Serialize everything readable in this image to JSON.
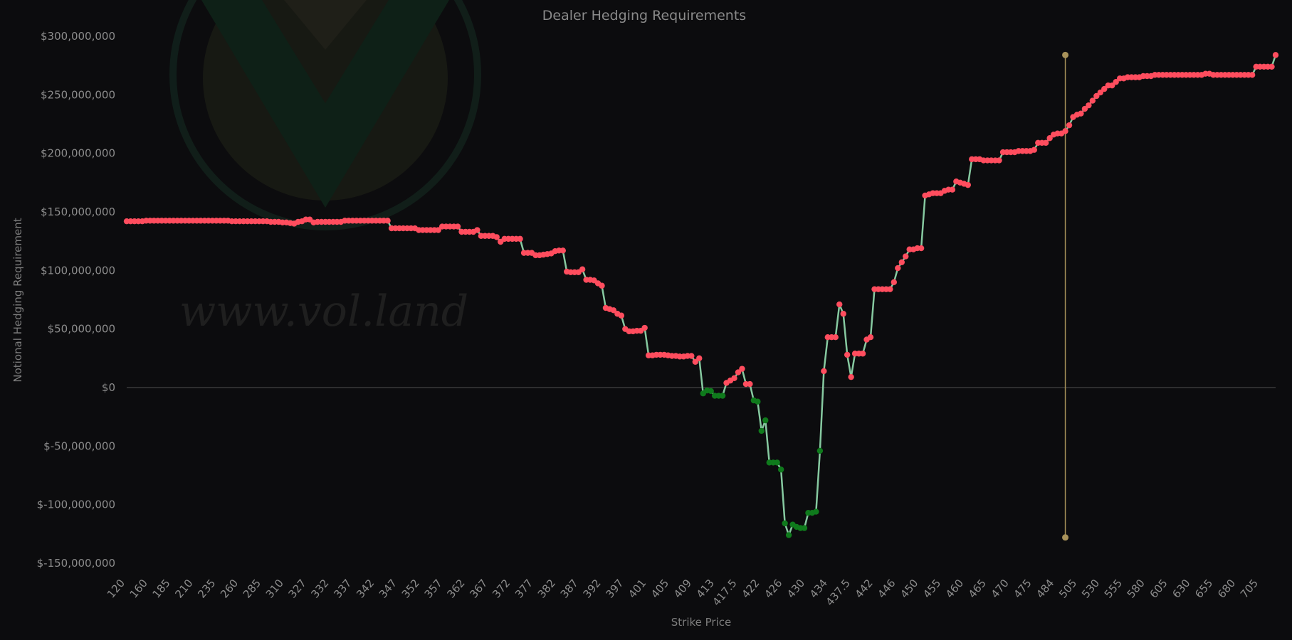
{
  "chart_data": {
    "type": "line",
    "title": "Dealer Hedging Requirements",
    "xlabel": "Strike Price",
    "ylabel": "Notional Hedging Requirement",
    "watermark": "www.vol.land",
    "ylim": [
      -150000000,
      300000000
    ],
    "y_ticks": [
      {
        "value": 300000000,
        "label": "$300,000,000"
      },
      {
        "value": 250000000,
        "label": "$250,000,000"
      },
      {
        "value": 200000000,
        "label": "$200,000,000"
      },
      {
        "value": 150000000,
        "label": "$150,000,000"
      },
      {
        "value": 100000000,
        "label": "$100,000,000"
      },
      {
        "value": 50000000,
        "label": "$50,000,000"
      },
      {
        "value": 0,
        "label": "$0"
      },
      {
        "value": -50000000,
        "label": "$-50,000,000"
      },
      {
        "value": -100000000,
        "label": "$-100,000,000"
      },
      {
        "value": -150000000,
        "label": "$-150,000,000"
      }
    ],
    "x_tick_labels": [
      "120",
      "160",
      "185",
      "210",
      "235",
      "260",
      "285",
      "310",
      "327",
      "332",
      "337",
      "342",
      "347",
      "352",
      "357",
      "362",
      "367",
      "372",
      "377",
      "382",
      "387",
      "392",
      "397",
      "401",
      "405",
      "409",
      "413",
      "417.5",
      "422",
      "426",
      "430",
      "434",
      "437.5",
      "442",
      "446",
      "450",
      "455",
      "460",
      "465",
      "470",
      "475",
      "484",
      "505",
      "530",
      "555",
      "580",
      "605",
      "630",
      "655",
      "680",
      "705"
    ],
    "spot_marker": {
      "x_index": 241,
      "top_value": 284000000,
      "bottom_value": -128000000
    },
    "colors": {
      "background": "#0c0c0e",
      "line": "#86c9a0",
      "positive_point": "#ff4d5e",
      "negative_point": "#0f7a1c",
      "spot_line": "#a8925a",
      "zero_line": "#3a3a3a"
    },
    "series": [
      {
        "values": [
          142,
          142,
          142,
          142,
          142,
          142.5,
          142.5,
          142.5,
          142.5,
          142.5,
          142.5,
          142.5,
          142.5,
          142.5,
          142.5,
          142.5,
          142.5,
          142.5,
          142.5,
          142.5,
          142.5,
          142.5,
          142.5,
          142.5,
          142.5,
          142.5,
          142.5,
          142,
          142,
          142,
          142,
          142,
          142,
          142,
          142,
          142,
          142,
          141.5,
          141.5,
          141.5,
          141,
          141,
          140.5,
          140,
          141.5,
          142,
          143.5,
          143.5,
          141,
          141.5,
          141.5,
          141.5,
          141.5,
          141.5,
          141.5,
          141.5,
          142.5,
          142.5,
          142.5,
          142.5,
          142.5,
          142.5,
          142.5,
          142.5,
          142.5,
          142.5,
          142.5,
          142.5,
          136,
          136,
          136,
          136,
          136,
          136,
          136,
          134.5,
          134.5,
          134.5,
          134.5,
          134.5,
          134.5,
          137.5,
          137.5,
          137.5,
          137.5,
          137.5,
          133,
          133,
          133,
          133,
          134.5,
          129.5,
          129.5,
          129.5,
          129.5,
          128.5,
          124.5,
          127,
          127,
          127,
          127,
          127,
          115,
          115,
          115,
          113,
          113,
          113.5,
          114,
          114.5,
          116.5,
          117,
          117,
          99,
          98.5,
          98.5,
          98.5,
          101,
          92,
          92,
          91.5,
          89,
          87,
          68,
          67,
          66,
          63,
          61.5,
          50,
          48,
          48,
          48.5,
          48.5,
          51,
          27.5,
          27.5,
          28,
          28,
          28,
          27.5,
          27,
          27,
          26.5,
          26.5,
          27,
          27,
          22,
          25,
          -5,
          -2.5,
          -3,
          -7,
          -7,
          -7,
          4,
          6,
          8,
          13,
          16,
          3,
          3,
          -11,
          -12,
          -37,
          -28,
          -64,
          -64,
          -64,
          -70,
          -116,
          -126,
          -117,
          -119,
          -120,
          -120,
          -107,
          -107,
          -106,
          -54,
          14,
          43,
          43,
          43,
          71,
          63,
          28,
          9,
          29,
          29,
          29,
          41,
          43,
          84,
          84,
          84,
          84,
          84,
          90,
          102,
          107,
          112,
          118,
          118,
          119,
          119,
          164,
          165,
          166,
          166,
          166,
          168,
          169,
          169,
          176,
          175,
          174,
          173,
          195,
          195,
          195,
          194,
          194,
          194,
          194,
          194,
          201,
          201,
          201,
          201,
          202,
          202,
          202,
          202,
          203,
          209,
          209,
          209,
          213,
          216,
          217,
          217,
          219,
          224,
          231,
          233,
          234,
          238,
          241,
          245,
          249,
          252,
          255,
          258,
          258,
          261,
          264,
          264,
          265,
          265,
          265,
          265,
          266,
          266,
          266,
          267,
          267,
          267,
          267,
          267,
          267,
          267,
          267,
          267,
          267,
          267,
          267,
          267,
          268,
          268,
          267,
          267,
          267,
          267,
          267,
          267,
          267,
          267,
          267,
          267,
          267,
          274,
          274,
          274,
          274,
          274,
          284
        ]
      }
    ]
  }
}
